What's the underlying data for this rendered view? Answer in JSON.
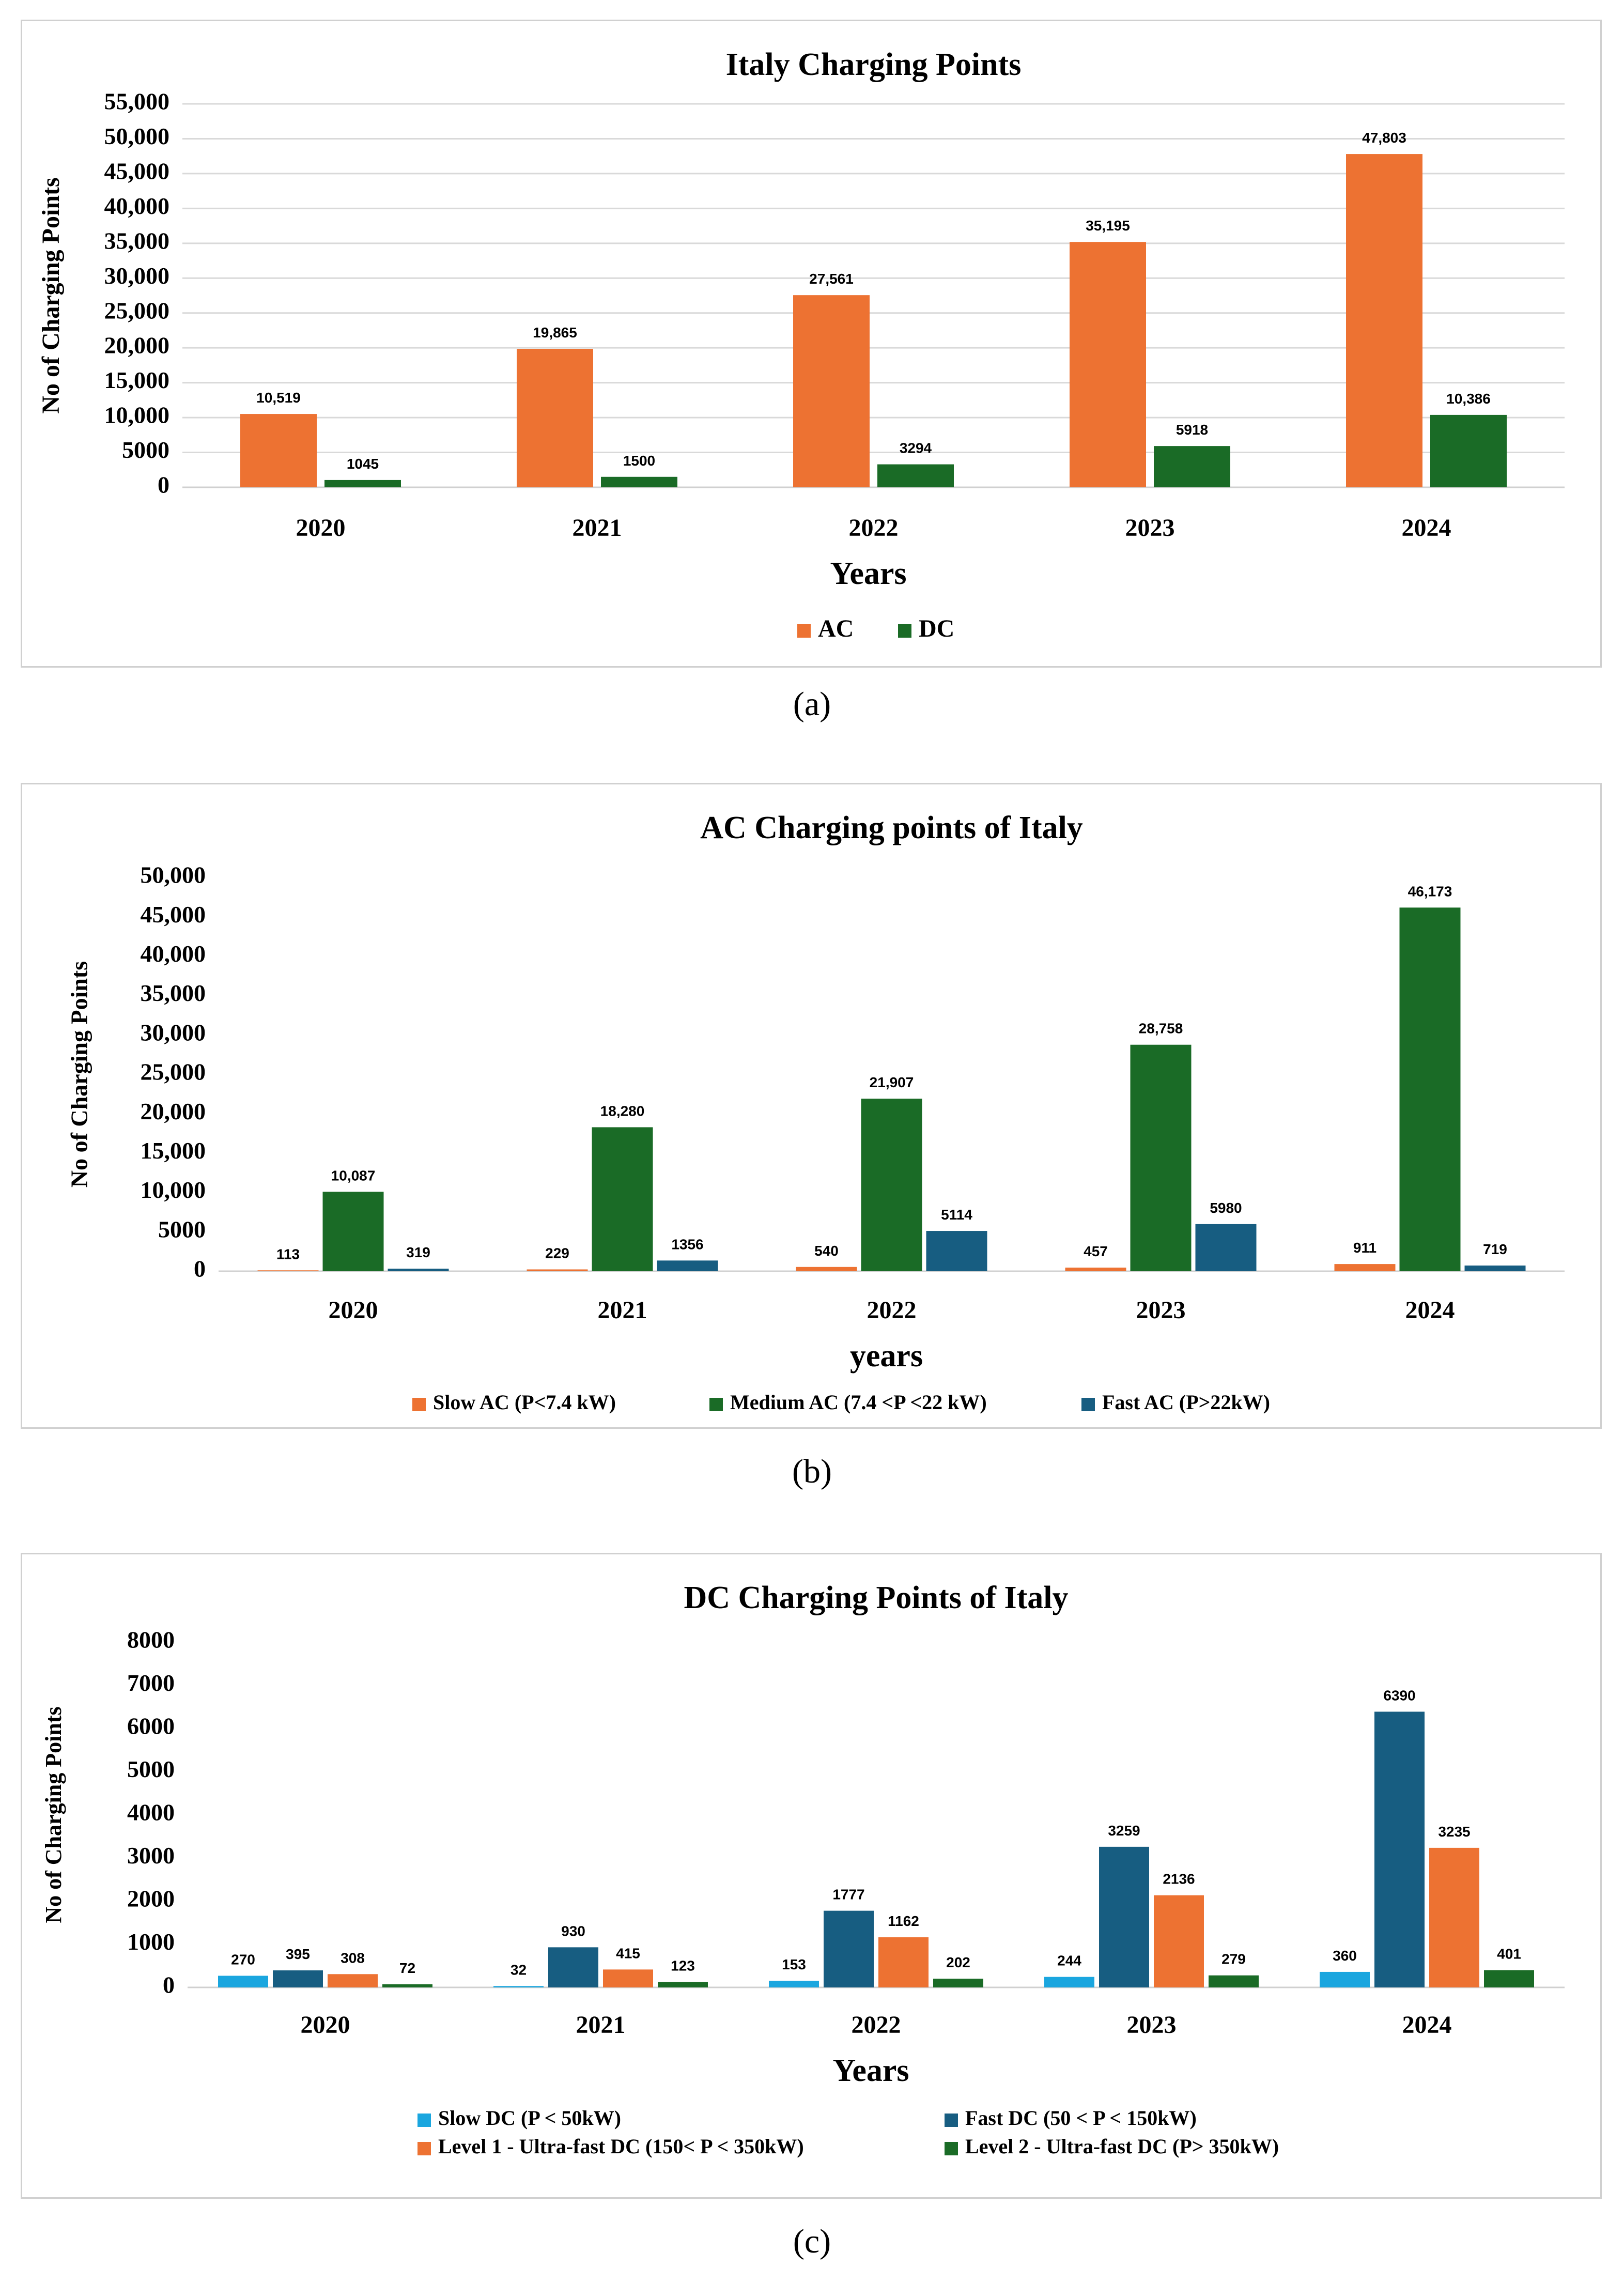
{
  "captions": [
    "(a)",
    "(b)",
    "(c)"
  ],
  "chart_data": [
    {
      "type": "bar",
      "title": "Italy Charging Points",
      "xlabel": "Years",
      "ylabel": "No of Charging Points",
      "categories": [
        "2020",
        "2021",
        "2022",
        "2023",
        "2024"
      ],
      "ylim": [
        0,
        55000
      ],
      "yticks": [
        "0",
        "5000",
        "10,000",
        "15,000",
        "20,000",
        "25,000",
        "30,000",
        "35,000",
        "40,000",
        "45,000",
        "50,000",
        "55,000"
      ],
      "grid": true,
      "legend": "bottom",
      "series": [
        {
          "name": "AC",
          "color": "#ED7232",
          "values": [
            10519,
            19865,
            27561,
            35195,
            47803
          ],
          "labels": [
            "10,519",
            "19,865",
            "27,561",
            "35,195",
            "47,803"
          ]
        },
        {
          "name": "DC",
          "color": "#1A6B26",
          "values": [
            1045,
            1500,
            3294,
            5918,
            10386
          ],
          "labels": [
            "1045",
            "1500",
            "3294",
            "5918",
            "10,386"
          ]
        }
      ]
    },
    {
      "type": "bar",
      "title": "AC Charging points of Italy",
      "xlabel": "years",
      "ylabel": "No of  Charging Points",
      "categories": [
        "2020",
        "2021",
        "2022",
        "2023",
        "2024"
      ],
      "ylim": [
        0,
        50000
      ],
      "yticks": [
        "0",
        "5000",
        "10,000",
        "15,000",
        "20,000",
        "25,000",
        "30,000",
        "35,000",
        "40,000",
        "45,000",
        "50,000"
      ],
      "grid": false,
      "legend": "bottom",
      "series": [
        {
          "name": "Slow AC (P<7.4 kW)",
          "color": "#ED7232",
          "values": [
            113,
            229,
            540,
            457,
            911
          ],
          "labels": [
            "113",
            "229",
            "540",
            "457",
            "911"
          ]
        },
        {
          "name": "Medium AC (7.4 <P <22 kW)",
          "color": "#1A6B26",
          "values": [
            10087,
            18280,
            21907,
            28758,
            46173
          ],
          "labels": [
            "10,087",
            "18,280",
            "21,907",
            "28,758",
            "46,173"
          ]
        },
        {
          "name": "Fast AC  (P>22kW)",
          "color": "#175D81",
          "values": [
            319,
            1356,
            5114,
            5980,
            719
          ],
          "labels": [
            "319",
            "1356",
            "5114",
            "5980",
            "719"
          ]
        }
      ]
    },
    {
      "type": "bar",
      "title": "DC Charging Points of Italy",
      "xlabel": "Years",
      "ylabel": "No of  Charging Points",
      "categories": [
        "2020",
        "2021",
        "2022",
        "2023",
        "2024"
      ],
      "ylim": [
        0,
        8000
      ],
      "yticks": [
        "0",
        "1000",
        "2000",
        "3000",
        "4000",
        "5000",
        "6000",
        "7000",
        "8000"
      ],
      "grid": false,
      "legend": "bottom",
      "series": [
        {
          "name": "Slow DC (P < 50kW)",
          "color": "#1AA6DF",
          "values": [
            270,
            32,
            153,
            244,
            360
          ],
          "labels": [
            "270",
            "32",
            "153",
            "244",
            "360"
          ]
        },
        {
          "name": "Fast DC  (50 < P < 150kW)",
          "color": "#175D81",
          "values": [
            395,
            930,
            1777,
            3259,
            6390
          ],
          "labels": [
            "395",
            "930",
            "1777",
            "3259",
            "6390"
          ]
        },
        {
          "name": "Level 1 - Ultra-fast DC (150< P < 350kW)",
          "color": "#ED7232",
          "values": [
            308,
            415,
            1162,
            2136,
            3235
          ],
          "labels": [
            "308",
            "415",
            "1162",
            "2136",
            "3235"
          ]
        },
        {
          "name": "Level 2 - Ultra-fast DC (P> 350kW)",
          "color": "#1A6B26",
          "values": [
            72,
            123,
            202,
            279,
            401
          ],
          "labels": [
            "72",
            "123",
            "202",
            "279",
            "401"
          ]
        }
      ]
    }
  ]
}
